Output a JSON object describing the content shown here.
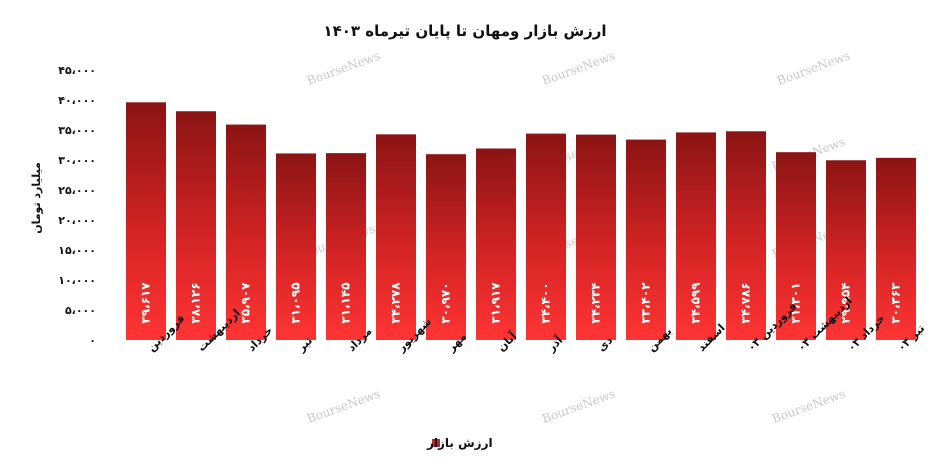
{
  "chart_data": {
    "type": "bar",
    "title": "ارزش بازار ومهان تا پایان تیرماه ۱۴۰۳",
    "ylabel": "میلیارد تومان",
    "xlabel": "",
    "ylim": [
      0,
      45000
    ],
    "yticks": [
      0,
      5000,
      10000,
      15000,
      20000,
      25000,
      30000,
      35000,
      40000,
      45000
    ],
    "ytick_labels": [
      "۰",
      "۵،۰۰۰",
      "۱۰،۰۰۰",
      "۱۵،۰۰۰",
      "۲۰،۰۰۰",
      "۲۵،۰۰۰",
      "۳۰،۰۰۰",
      "۳۵،۰۰۰",
      "۴۰،۰۰۰",
      "۴۵،۰۰۰"
    ],
    "categories": [
      "فروردین",
      "اردیبهشت",
      "خرداد",
      "تیر",
      "مرداد",
      "شهریور",
      "مهر",
      "آبان",
      "آذر",
      "دی",
      "بهمن",
      "اسفند",
      "فروردین ۰۳",
      "اردیبهشت ۰۳",
      "خرداد ۰۳",
      "تیر ۰۳"
    ],
    "values": [
      39617,
      38126,
      35907,
      31095,
      31145,
      34278,
      30970,
      31917,
      34400,
      34234,
      33402,
      34599,
      34786,
      31301,
      29954,
      30363
    ],
    "data_labels": [
      "۳۹،۶۱۷",
      "۳۸،۱۲۶",
      "۳۵،۹۰۷",
      "۳۱،۰۹۵",
      "۳۱،۱۴۵",
      "۳۴،۲۷۸",
      "۳۰،۹۷۰",
      "۳۱،۹۱۷",
      "۳۴،۴۰۰",
      "۳۴،۲۳۴",
      "۳۳،۴۰۲",
      "۳۴،۵۹۹",
      "۳۴،۷۸۶",
      "۳۱،۳۰۱",
      "۲۹،۹۵۴",
      "۳۰،۳۶۳"
    ],
    "legend": {
      "label": "ارزش بازار",
      "position": "bottom"
    },
    "grid": false,
    "colors": {
      "bar_top": "#8b1414",
      "bar_bottom": "#ff3434",
      "legend_swatch": "#c0282d"
    }
  },
  "watermark": "BourseNews"
}
